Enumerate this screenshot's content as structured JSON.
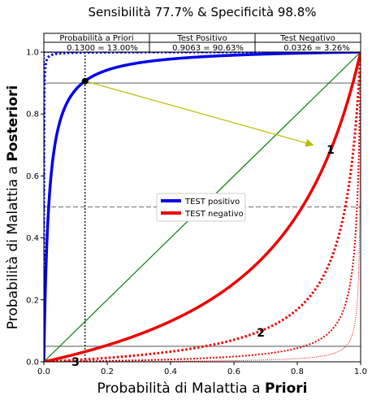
{
  "chart_data": {
    "type": "line",
    "title": "Sensibilità 77.7%  &  Specificità 98.8%",
    "xlabel_prefix": "Probabilità di Malattia a ",
    "xlabel_bold": "Priori",
    "ylabel_prefix": "Probabilità di Malattia a ",
    "ylabel_bold": "Posteriori",
    "xlim": [
      0,
      1
    ],
    "ylim": [
      0,
      1
    ],
    "xticks": [
      "0.0",
      "0.2",
      "0.4",
      "0.6",
      "0.8",
      "1.0"
    ],
    "yticks": [
      "0.0",
      "0.2",
      "0.4",
      "0.6",
      "0.8",
      "1.0"
    ],
    "sensitivity": 0.777,
    "specificity": 0.988,
    "prior": 0.13,
    "posterior_positive": 0.9063,
    "posterior_negative": 0.0326,
    "info_table": {
      "headers": [
        "Probabilità a Priori",
        "Test Positivo",
        "Test Negativo"
      ],
      "values": [
        "0.1300 = 13.00%",
        "0.9063 = 90.63%",
        "0.0326 = 3.26%"
      ]
    },
    "legend": [
      {
        "label": "TEST positivo",
        "color": "#0000ee"
      },
      {
        "label": "TEST negativo",
        "color": "#ee0000"
      }
    ],
    "series": [
      {
        "name": "TEST positivo",
        "test": "positive",
        "repeat": 1,
        "style": "solid-thick",
        "color": "#0000ee"
      },
      {
        "name": "TEST positivo x2",
        "test": "positive",
        "repeat": 2,
        "style": "dotted-thick",
        "color": "#0000ee"
      },
      {
        "name": "TEST positivo x3",
        "test": "positive",
        "repeat": 3,
        "style": "dotted-medium",
        "color": "#0000ee"
      },
      {
        "name": "TEST positivo x4",
        "test": "positive",
        "repeat": 4,
        "style": "dotted-thin",
        "color": "#0000ee"
      },
      {
        "name": "TEST negativo",
        "test": "negative",
        "repeat": 1,
        "style": "solid-thick",
        "color": "#ee0000"
      },
      {
        "name": "TEST negativo x2",
        "test": "negative",
        "repeat": 2,
        "style": "dotted-thick",
        "color": "#ee0000"
      },
      {
        "name": "TEST negativo x3",
        "test": "negative",
        "repeat": 3,
        "style": "dotted-medium",
        "color": "#ee0000"
      },
      {
        "name": "TEST negativo x4",
        "test": "negative",
        "repeat": 4,
        "style": "dotted-thin",
        "color": "#ee0000"
      }
    ],
    "diagonal": {
      "color": "#008000"
    },
    "reference_lines": {
      "horizontal": [
        0.9,
        0.5,
        0.05
      ],
      "vertical": [
        0.13
      ]
    },
    "arrow": {
      "from": [
        0.13,
        0.9063
      ],
      "to": [
        0.85,
        0.7
      ],
      "color": "#bbbb00"
    },
    "curve_labels": [
      {
        "text": "1",
        "x": 0.905,
        "y": 0.685
      },
      {
        "text": "2",
        "x": 0.685,
        "y": 0.095
      },
      {
        "text": "3",
        "x": 0.1,
        "y": 0.0
      }
    ]
  }
}
